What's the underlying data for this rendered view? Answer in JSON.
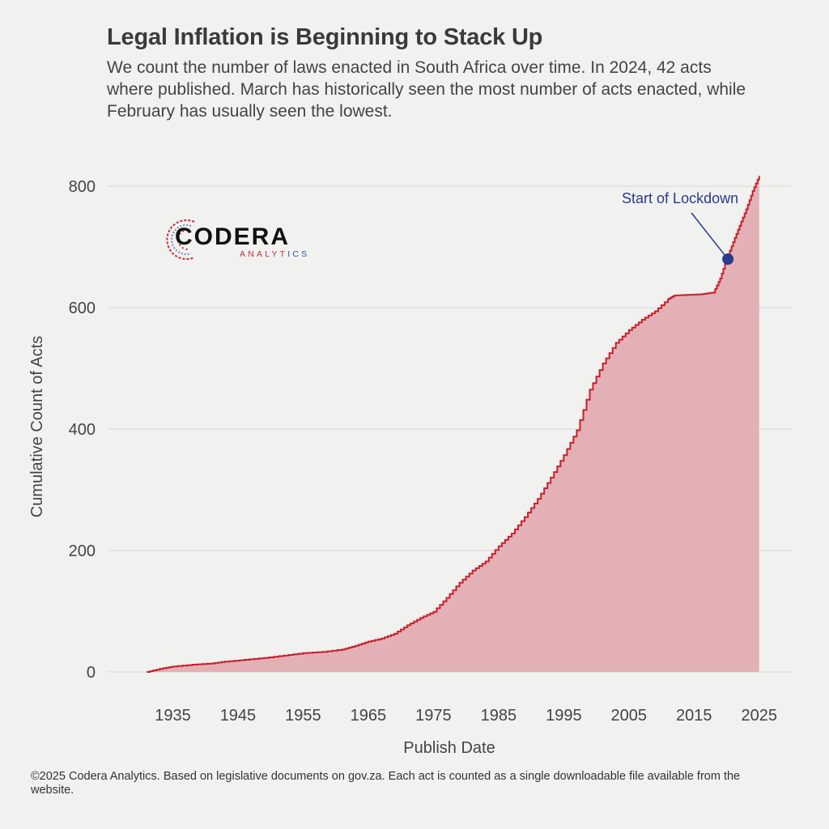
{
  "header": {
    "title": "Legal Inflation is Beginning to Stack Up",
    "subtitle": "We count the number of laws enacted in South Africa over time. In 2024, 42 acts where published. March has historically seen the most number of acts enacted, while February has usually seen the lowest."
  },
  "logo": {
    "name": "CODERA",
    "tagline_red": "ANALYT",
    "tagline_blue": "ICS"
  },
  "footer": {
    "caption": "©2025 Codera Analytics. Based on legislative documents on gov.za. Each act is counted as a single downloadable file available from the website."
  },
  "colors": {
    "background": "#f1f1ef",
    "line": "#c8202e",
    "fill": "#e3b1b5",
    "grid": "#d6d6d6",
    "annotation": "#2a3a8c"
  },
  "chart_data": {
    "type": "area",
    "title": "Legal Inflation is Beginning to Stack Up",
    "xlabel": "Publish Date",
    "ylabel": "Cumulative Count of Acts",
    "xlim": [
      1925,
      2030
    ],
    "ylim": [
      0,
      820
    ],
    "x_ticks": [
      1935,
      1945,
      1955,
      1965,
      1975,
      1985,
      1995,
      2005,
      2015,
      2025
    ],
    "y_ticks": [
      0,
      200,
      400,
      600,
      800
    ],
    "grid": true,
    "series": [
      {
        "name": "Cumulative Count of Acts",
        "x": [
          1931,
          1933,
          1935,
          1938,
          1941,
          1943,
          1946,
          1949,
          1952,
          1955,
          1958,
          1961,
          1963,
          1965,
          1967,
          1969,
          1971,
          1973,
          1975,
          1977,
          1979,
          1981,
          1983,
          1985,
          1987,
          1989,
          1991,
          1993,
          1995,
          1997,
          1999,
          2001,
          2003,
          2005,
          2007,
          2009,
          2011,
          2012,
          2014,
          2016,
          2018,
          2019,
          2020,
          2021,
          2022,
          2023,
          2024,
          2025
        ],
        "values": [
          0,
          5,
          9,
          12,
          14,
          17,
          20,
          23,
          27,
          31,
          33,
          37,
          43,
          50,
          55,
          63,
          77,
          89,
          99,
          122,
          147,
          167,
          182,
          207,
          228,
          255,
          285,
          320,
          357,
          398,
          465,
          508,
          542,
          563,
          580,
          594,
          614,
          620,
          621,
          622,
          625,
          648,
          680,
          708,
          735,
          762,
          792,
          817
        ]
      }
    ],
    "annotations": [
      {
        "text": "Start of Lockdown",
        "x": 2020.2,
        "y": 680
      }
    ]
  }
}
